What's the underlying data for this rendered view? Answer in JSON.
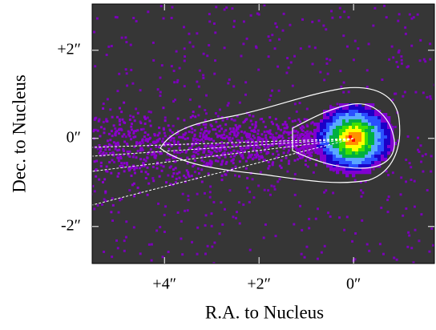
{
  "chart_data": {
    "type": "image",
    "x_label": "R.A. to Nucleus",
    "y_label": "Dec. to Nucleus",
    "xlim": [
      5.53,
      -1.71
    ],
    "ylim": [
      -2.84,
      3.05
    ],
    "xticks": [
      {
        "value": 4,
        "label": "+4″"
      },
      {
        "value": 2,
        "label": "+2″"
      },
      {
        "value": 0,
        "label": "0″"
      }
    ],
    "yticks": [
      {
        "value": 2,
        "label": "+2″"
      },
      {
        "value": 0,
        "label": "0″"
      },
      {
        "value": -2,
        "label": "-2″"
      }
    ]
  }
}
